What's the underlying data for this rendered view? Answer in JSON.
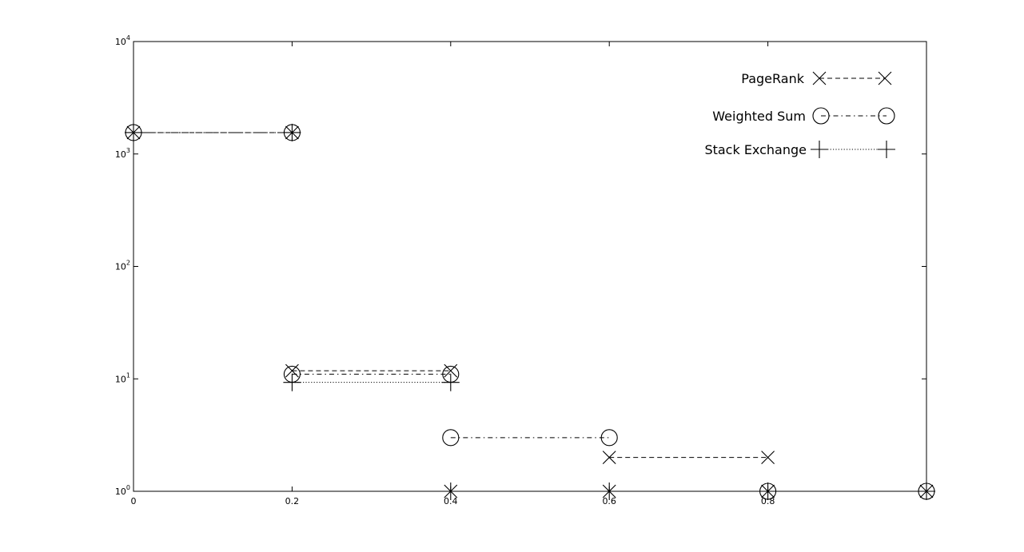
{
  "chart_data": {
    "type": "line",
    "title": "",
    "xlabel": "",
    "ylabel": "",
    "xlim": [
      0,
      1
    ],
    "ylim": [
      1,
      10000
    ],
    "y_scale": "log",
    "grid": false,
    "legend_position": "top-right",
    "x_ticks": [
      "0",
      "0.2",
      "0.4",
      "0.6",
      "0.8"
    ],
    "y_ticks": [
      {
        "base": "10",
        "exp": "0"
      },
      {
        "base": "10",
        "exp": "1"
      },
      {
        "base": "10",
        "exp": "2"
      },
      {
        "base": "10",
        "exp": "3"
      },
      {
        "base": "10",
        "exp": "4"
      }
    ],
    "series": [
      {
        "name": "PageRank",
        "marker": "x",
        "line_style": "dashed",
        "segments": [
          [
            [
              0,
              1550
            ],
            [
              0.2,
              1550
            ]
          ],
          [
            [
              0.2,
              11.8
            ],
            [
              0.4,
              11.8
            ]
          ],
          [
            [
              0.4,
              1
            ],
            [
              0.6,
              1
            ]
          ],
          [
            [
              0.6,
              2
            ],
            [
              0.8,
              2
            ]
          ],
          [
            [
              0.8,
              1
            ],
            [
              1.0,
              1
            ]
          ]
        ]
      },
      {
        "name": "Weighted Sum",
        "marker": "circle",
        "line_style": "dash-dot",
        "segments": [
          [
            [
              0,
              1550
            ],
            [
              0.2,
              1550
            ]
          ],
          [
            [
              0.2,
              11
            ],
            [
              0.4,
              11
            ]
          ],
          [
            [
              0.4,
              3
            ],
            [
              0.6,
              3
            ]
          ],
          [
            [
              0.8,
              1
            ],
            [
              1.0,
              1
            ]
          ]
        ]
      },
      {
        "name": "Stack Exchange",
        "marker": "plus",
        "line_style": "dotted",
        "segments": [
          [
            [
              0,
              1550
            ],
            [
              0.2,
              1550
            ]
          ],
          [
            [
              0.2,
              9.3
            ],
            [
              0.4,
              9.3
            ]
          ],
          [
            [
              0.4,
              1
            ],
            [
              0.6,
              1
            ]
          ],
          [
            [
              0.8,
              1
            ],
            [
              1.0,
              1
            ]
          ]
        ]
      }
    ]
  }
}
